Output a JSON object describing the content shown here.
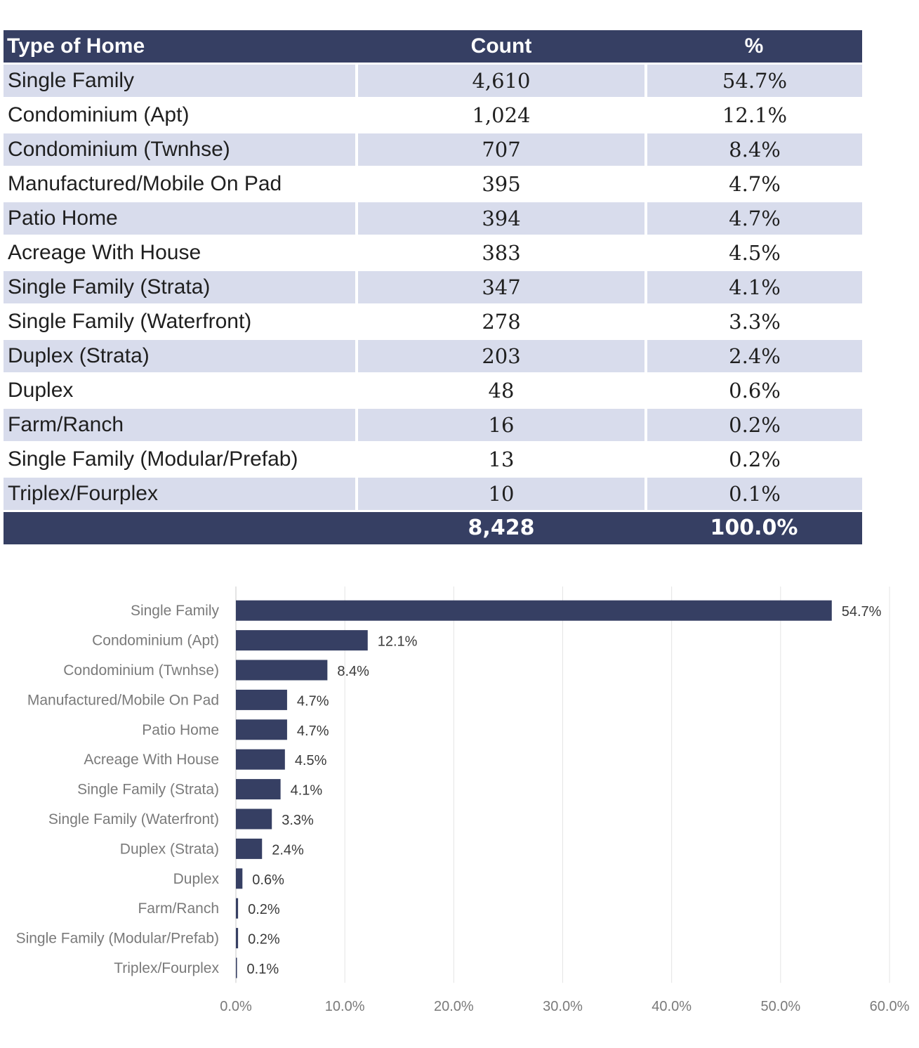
{
  "table": {
    "headers": [
      "Type of Home",
      "Count",
      "%"
    ],
    "rows": [
      {
        "type": "Single Family",
        "count": "4,610",
        "pct": "54.7%"
      },
      {
        "type": "Condominium (Apt)",
        "count": "1,024",
        "pct": "12.1%"
      },
      {
        "type": "Condominium (Twnhse)",
        "count": "707",
        "pct": "8.4%"
      },
      {
        "type": "Manufactured/Mobile On Pad",
        "count": "395",
        "pct": "4.7%"
      },
      {
        "type": "Patio Home",
        "count": "394",
        "pct": "4.7%"
      },
      {
        "type": "Acreage With House",
        "count": "383",
        "pct": "4.5%"
      },
      {
        "type": "Single Family (Strata)",
        "count": "347",
        "pct": "4.1%"
      },
      {
        "type": "Single Family (Waterfront)",
        "count": "278",
        "pct": "3.3%"
      },
      {
        "type": "Duplex (Strata)",
        "count": "203",
        "pct": "2.4%"
      },
      {
        "type": "Duplex",
        "count": "48",
        "pct": "0.6%"
      },
      {
        "type": "Farm/Ranch",
        "count": "16",
        "pct": "0.2%"
      },
      {
        "type": "Single Family (Modular/Prefab)",
        "count": "13",
        "pct": "0.2%"
      },
      {
        "type": "Triplex/Fourplex",
        "count": "10",
        "pct": "0.1%"
      }
    ],
    "total": {
      "type": "",
      "count": "8,428",
      "pct": "100.0%"
    }
  },
  "chart_data": {
    "type": "bar",
    "orientation": "horizontal",
    "categories": [
      "Single Family",
      "Condominium (Apt)",
      "Condominium (Twnhse)",
      "Manufactured/Mobile On Pad",
      "Patio Home",
      "Acreage With House",
      "Single Family (Strata)",
      "Single Family (Waterfront)",
      "Duplex (Strata)",
      "Duplex",
      "Farm/Ranch",
      "Single Family (Modular/Prefab)",
      "Triplex/Fourplex"
    ],
    "values": [
      54.7,
      12.1,
      8.4,
      4.7,
      4.7,
      4.5,
      4.1,
      3.3,
      2.4,
      0.6,
      0.2,
      0.2,
      0.1
    ],
    "value_labels": [
      "54.7%",
      "12.1%",
      "8.4%",
      "4.7%",
      "4.7%",
      "4.5%",
      "4.1%",
      "3.3%",
      "2.4%",
      "0.6%",
      "0.2%",
      "0.2%",
      "0.1%"
    ],
    "xticks": [
      "0.0%",
      "10.0%",
      "20.0%",
      "30.0%",
      "40.0%",
      "50.0%",
      "60.0%"
    ],
    "xlim": [
      0,
      60
    ],
    "title": "",
    "xlabel": "",
    "ylabel": "",
    "grid": true,
    "legend": "none",
    "bar_color": "#363f63"
  }
}
